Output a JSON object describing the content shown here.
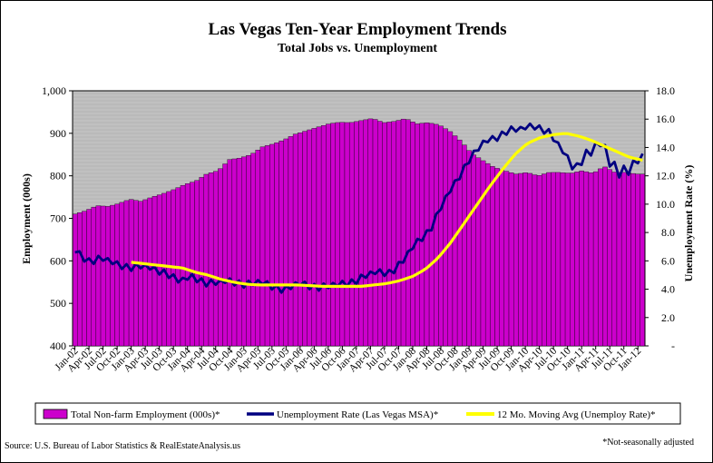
{
  "chart_data": {
    "type": "bar+line",
    "title": "Las Vegas Ten-Year Employment Trends",
    "subtitle": "Total Jobs vs. Unemployment",
    "ylabel_left": "Employment (000s)",
    "ylabel_right": "Unemployment Rate (%)",
    "ylim_left": [
      400,
      1000
    ],
    "ylim_right": [
      0,
      18
    ],
    "yticks_left": [
      "400",
      "500",
      "600",
      "700",
      "800",
      "900",
      "1,000"
    ],
    "yticks_right": [
      "-",
      "2.0",
      "4.0",
      "6.0",
      "8.0",
      "10.0",
      "12.0",
      "14.0",
      "16.0",
      "18.0"
    ],
    "x_start": "Jan-02",
    "x_end": "Feb-12",
    "x_tick_labels": [
      "Jan-02",
      "Apr-02",
      "Jul-02",
      "Oct-02",
      "Jan-03",
      "Apr-03",
      "Jul-03",
      "Oct-03",
      "Jan-04",
      "Apr-04",
      "Jul-04",
      "Oct-04",
      "Jan-05",
      "Apr-05",
      "Jul-05",
      "Oct-05",
      "Jan-06",
      "Apr-06",
      "Jul-06",
      "Oct-06",
      "Jan-07",
      "Apr-07",
      "Jul-07",
      "Oct-07",
      "Jan-08",
      "Apr-08",
      "Jul-08",
      "Oct-08",
      "Jan-09",
      "Apr-09",
      "Jul-09",
      "Oct-09",
      "Jan-10",
      "Apr-10",
      "Jul-10",
      "Oct-10",
      "Jan-11",
      "Apr-11",
      "Jul-11",
      "Oct-11",
      "Jan-12"
    ],
    "plot_background": "#c0c0c0",
    "series_colors": {
      "employment": "#cc00cc",
      "unemployment": "#000080",
      "moving_avg": "#ffff00"
    },
    "employment_quarterly_anchors": [
      710,
      718,
      730,
      728,
      735,
      745,
      740,
      750,
      758,
      768,
      780,
      788,
      805,
      812,
      838,
      842,
      850,
      868,
      875,
      885,
      898,
      906,
      914,
      922,
      926,
      925,
      930,
      935,
      925,
      928,
      935,
      922,
      925,
      920,
      905,
      882,
      852,
      836,
      820,
      812,
      804,
      808,
      800,
      808,
      808,
      806,
      812,
      806,
      822,
      808,
      808,
      804
    ],
    "unemployment_quarterly_anchors": [
      6.6,
      6.0,
      6.2,
      5.7,
      5.6,
      5.6,
      5.3,
      5.2,
      4.5,
      4.8,
      4.5,
      4.4,
      4.5,
      4.4,
      4.4,
      4.2,
      4.0,
      4.3,
      4.2,
      4.2,
      4.2,
      4.5,
      4.9,
      5.1,
      5.2,
      6.0,
      7.2,
      8.2,
      10.0,
      11.5,
      13.2,
      14.2,
      14.6,
      15.3,
      15.2,
      15.5,
      15.2,
      13.8,
      12.5,
      13.5,
      14.1,
      12.7,
      12.2,
      13.0
    ],
    "moving_avg_quarterly_anchors": [
      5.9,
      5.8,
      5.7,
      5.6,
      5.5,
      5.2,
      5.0,
      4.7,
      4.5,
      4.35,
      4.3,
      4.3,
      4.3,
      4.3,
      4.25,
      4.2,
      4.2,
      4.2,
      4.2,
      4.3,
      4.4,
      4.6,
      4.9,
      5.4,
      6.2,
      7.3,
      8.6,
      9.9,
      11.2,
      12.4,
      13.5,
      14.3,
      14.7,
      14.9,
      15.0,
      14.8,
      14.5,
      14.1,
      13.7,
      13.3,
      13.1
    ]
  },
  "legend": [
    {
      "label": "Total Non-farm Employment (000s)*",
      "swatch": "bar"
    },
    {
      "label": "Unemployment Rate (Las Vegas MSA)*",
      "swatch": "line-navy"
    },
    {
      "label": "12 Mo. Moving Avg (Unemploy Rate)*",
      "swatch": "line-yellow"
    }
  ],
  "footer": {
    "source": "Source: U.S. Bureau of Labor Statistics & RealEstateAnalysis.us",
    "note": "*Not-seasonally adjusted"
  }
}
